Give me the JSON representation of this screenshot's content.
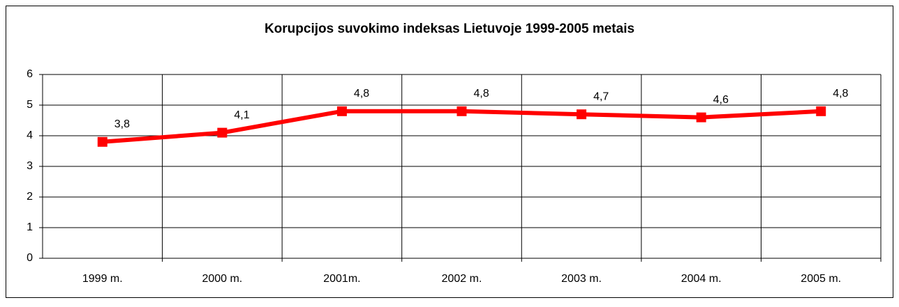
{
  "chart_data": {
    "type": "line",
    "title": "Korupcijos suvokimo indeksas Lietuvoje 1999-2005 metais",
    "categories": [
      "1999 m.",
      "2000 m.",
      "2001m.",
      "2002 m.",
      "2003 m.",
      "2004 m.",
      "2005 m."
    ],
    "series": [
      {
        "name": "Korupcijos suvokimo indeksas",
        "color": "#ff0000",
        "values": [
          3.8,
          4.1,
          4.8,
          4.8,
          4.7,
          4.6,
          4.8
        ],
        "value_labels": [
          "3,8",
          "4,1",
          "4,8",
          "4,8",
          "4,7",
          "4,6",
          "4,8"
        ]
      }
    ],
    "ylim": [
      0,
      6
    ],
    "yticks": [
      0,
      1,
      2,
      3,
      4,
      5,
      6
    ],
    "grid": true
  }
}
